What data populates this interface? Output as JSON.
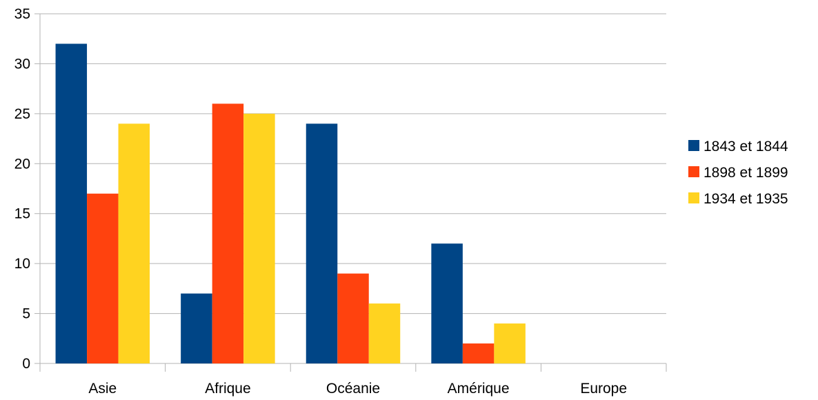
{
  "chart_data": {
    "type": "bar",
    "categories": [
      "Asie",
      "Afrique",
      "Océanie",
      "Amérique",
      "Europe"
    ],
    "series": [
      {
        "name": "1843 et 1844",
        "color": "#004586",
        "values": [
          32,
          7,
          24,
          12,
          0
        ]
      },
      {
        "name": "1898 et 1899",
        "color": "#ff420e",
        "values": [
          17,
          26,
          9,
          2,
          0
        ]
      },
      {
        "name": "1934 et 1935",
        "color": "#ffd320",
        "values": [
          24,
          25,
          6,
          4,
          0
        ]
      }
    ],
    "title": "",
    "xlabel": "",
    "ylabel": "",
    "ylim": [
      0,
      35
    ],
    "yticks": [
      0,
      5,
      10,
      15,
      20,
      25,
      30,
      35
    ],
    "grid": true,
    "legend_position": "right"
  }
}
